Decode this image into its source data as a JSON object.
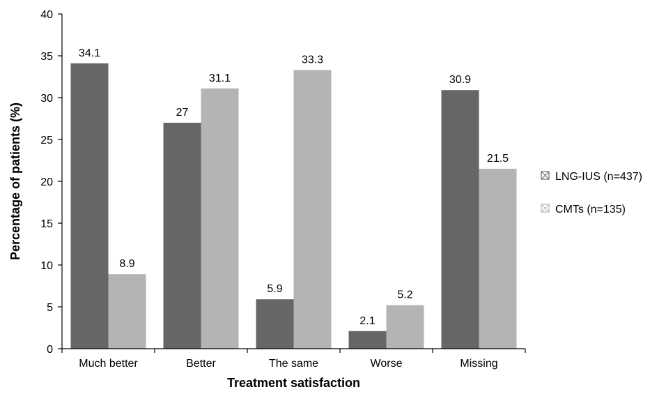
{
  "chart_data": {
    "type": "bar",
    "categories": [
      "Much better",
      "Better",
      "The same",
      "Worse",
      "Missing"
    ],
    "series": [
      {
        "name": "LNG-IUS (n=437)",
        "values": [
          34.1,
          27,
          5.9,
          2.1,
          30.9
        ],
        "color": "#666666"
      },
      {
        "name": "CMTs (n=135)",
        "values": [
          8.9,
          31.1,
          33.3,
          5.2,
          21.5
        ],
        "color": "#b4b4b6"
      }
    ],
    "xlabel": "Treatment satisfaction",
    "ylabel": "Percentage of patients (%)",
    "ylim": [
      0,
      40
    ],
    "yticks": [
      0,
      5,
      10,
      15,
      20,
      25,
      30,
      35,
      40
    ],
    "grid": false,
    "legend_position": "right"
  }
}
